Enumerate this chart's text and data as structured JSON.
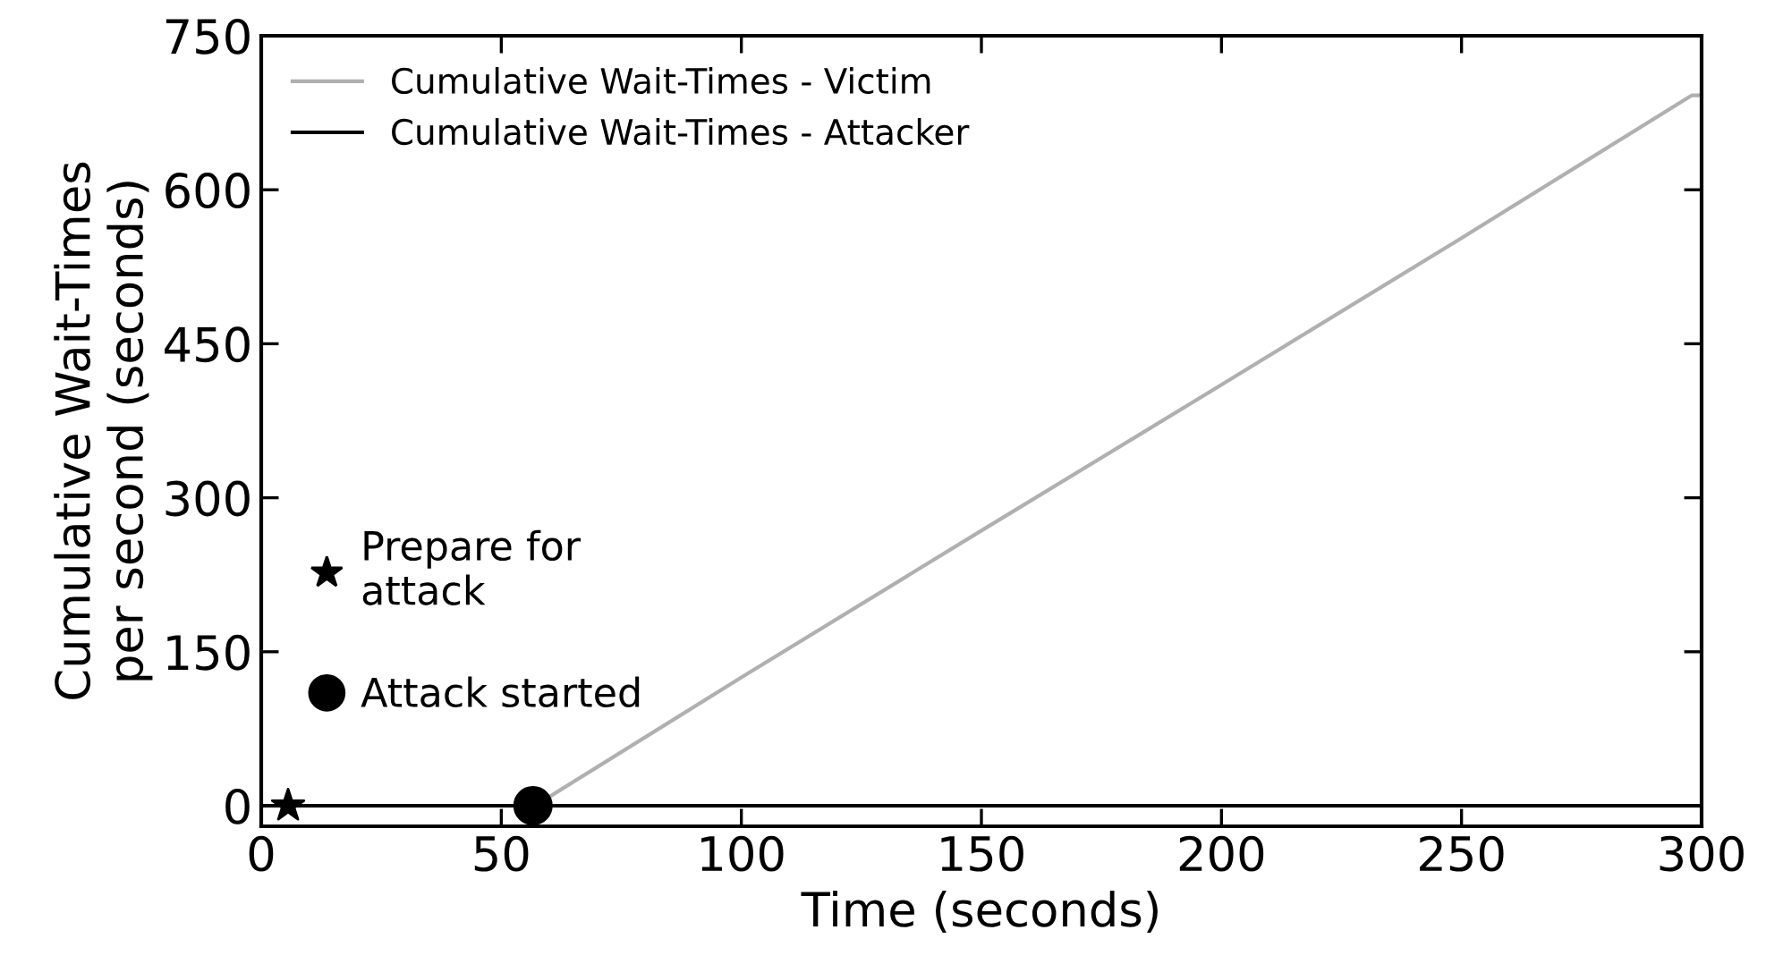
{
  "chart_data": {
    "type": "line",
    "xlabel": "Time (seconds)",
    "ylabel": "Cumulative Wait-Times\nper second (seconds)",
    "xlim": [
      0,
      300
    ],
    "xticks": [
      0,
      50,
      100,
      150,
      200,
      250,
      300
    ],
    "ylim": [
      -20,
      750
    ],
    "yticks": [
      0,
      150,
      300,
      450,
      600,
      750
    ],
    "grid": false,
    "legend": "top left",
    "series": [
      {
        "name": "Cumulative Wait-Times - Victim",
        "color": "#b0b0b0",
        "x": [
          57,
          100,
          150,
          200,
          250,
          298,
          300
        ],
        "values": [
          0,
          125,
          268,
          410,
          553,
          692,
          692
        ]
      },
      {
        "name": "Cumulative Wait-Times - Attacker",
        "color": "#000000",
        "x": [
          0,
          300
        ],
        "values": [
          0,
          0
        ]
      },
      {
        "name": "Prepare for\nattack",
        "type": "scatter",
        "marker": "star",
        "color": "#000000",
        "x": [
          5.6
        ],
        "values": [
          0
        ]
      },
      {
        "name": "Attack started",
        "type": "scatter",
        "marker": "circle",
        "color": "#000000",
        "x": [
          56.6
        ],
        "values": [
          0
        ]
      }
    ]
  }
}
